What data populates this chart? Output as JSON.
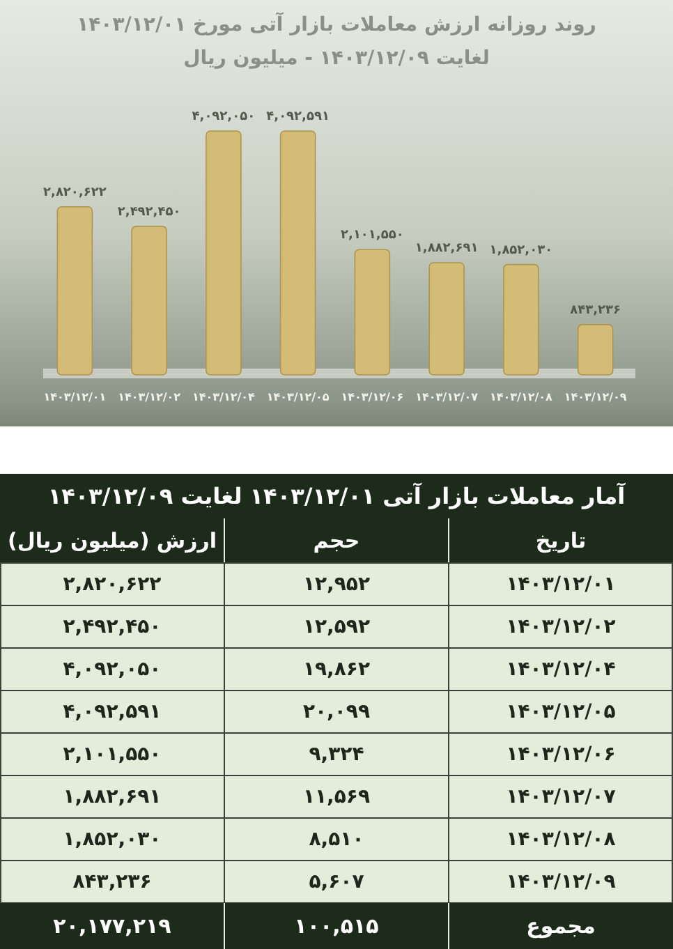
{
  "chart_data": [
    {
      "type": "bar",
      "title": "روند روزانه ارزش معاملات بازار آتی مورخ ۱۴۰۳/۱۲/۰۱ لغایت ۱۴۰۳/۱۲/۰۹ - میلیون ریال",
      "categories": [
        "۱۴۰۳/۱۲/۰۱",
        "۱۴۰۳/۱۲/۰۲",
        "۱۴۰۳/۱۲/۰۴",
        "۱۴۰۳/۱۲/۰۵",
        "۱۴۰۳/۱۲/۰۶",
        "۱۴۰۳/۱۲/۰۷",
        "۱۴۰۳/۱۲/۰۸",
        "۱۴۰۳/۱۲/۰۹"
      ],
      "values": [
        2820622,
        2492450,
        4092050,
        4092591,
        2101550,
        1882691,
        1852030,
        843236
      ],
      "value_labels": [
        "۲,۸۲۰,۶۲۲",
        "۲,۴۹۲,۴۵۰",
        "۴,۰۹۲,۰۵۰",
        "۴,۰۹۲,۵۹۱",
        "۲,۱۰۱,۵۵۰",
        "۱,۸۸۲,۶۹۱",
        "۱,۸۵۲,۰۳۰",
        "۸۴۳,۲۳۶"
      ],
      "color": "#d3bd76"
    },
    {
      "type": "other",
      "title": "آمار معاملات بازار آتی ۱۴۰۳/۱۲/۰۱ لغایت ۱۴۰۳/۱۲/۰۹",
      "annotations": [
        "تاریخ",
        "حجم",
        "ارزش (میلیون ریال)",
        "۱۴۰۳/۱۲/۰۱",
        "۱۲,۹۵۲",
        "۲,۸۲۰,۶۲۲",
        "۱۴۰۳/۱۲/۰۲",
        "۱۲,۵۹۲",
        "۲,۴۹۲,۴۵۰",
        "۱۴۰۳/۱۲/۰۴",
        "۱۹,۸۶۲",
        "۴,۰۹۲,۰۵۰",
        "۱۴۰۳/۱۲/۰۵",
        "۲۰,۰۹۹",
        "۴,۰۹۲,۵۹۱",
        "۱۴۰۳/۱۲/۰۶",
        "۹,۳۲۴",
        "۲,۱۰۱,۵۵۰",
        "۱۴۰۳/۱۲/۰۷",
        "۱۱,۵۶۹",
        "۱,۸۸۲,۶۹۱",
        "۱۴۰۳/۱۲/۰۸",
        "۸,۵۱۰",
        "۱,۸۵۲,۰۳۰",
        "۱۴۰۳/۱۲/۰۹",
        "۵,۶۰۷",
        "۸۴۳,۲۳۶",
        "مجموع",
        "۱۰۰,۵۱۵",
        "۲۰,۱۷۷,۲۱۹"
      ]
    }
  ]
}
